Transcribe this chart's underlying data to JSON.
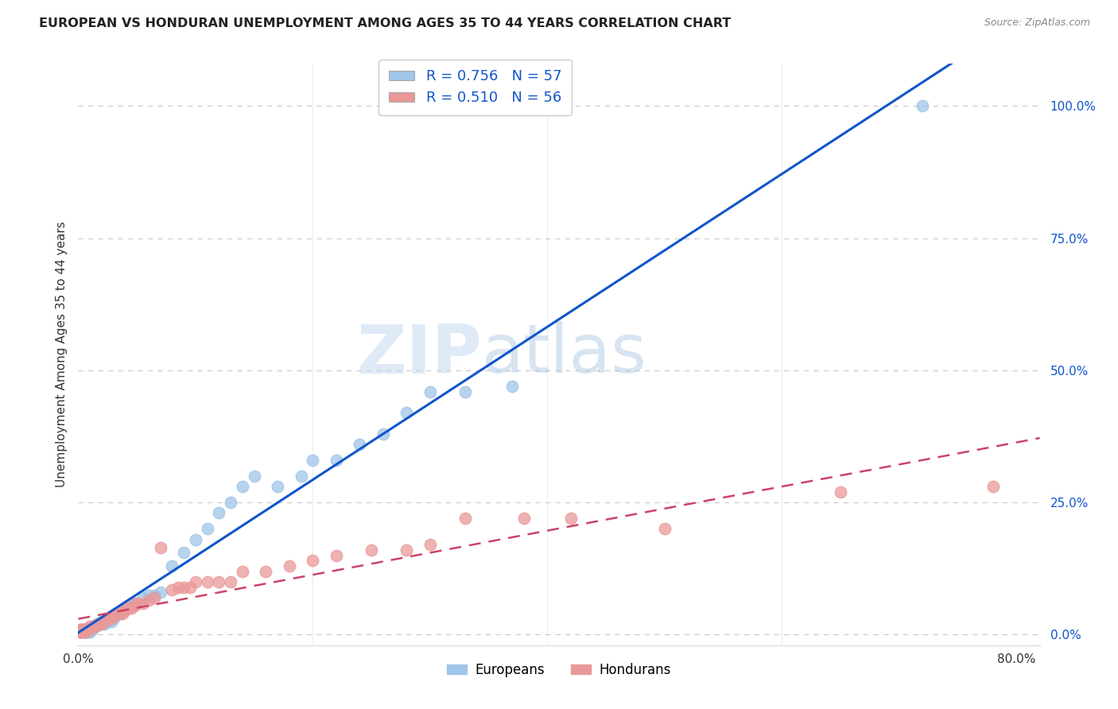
{
  "title": "EUROPEAN VS HONDURAN UNEMPLOYMENT AMONG AGES 35 TO 44 YEARS CORRELATION CHART",
  "source": "Source: ZipAtlas.com",
  "ylabel": "Unemployment Among Ages 35 to 44 years",
  "xlim": [
    0.0,
    0.82
  ],
  "ylim": [
    -0.02,
    1.08
  ],
  "yticks": [
    0.0,
    0.25,
    0.5,
    0.75,
    1.0
  ],
  "ytick_labels": [
    "0.0%",
    "25.0%",
    "50.0%",
    "75.0%",
    "100.0%"
  ],
  "xticks": [
    0.0,
    0.2,
    0.4,
    0.6,
    0.8
  ],
  "xtick_labels": [
    "0.0%",
    "",
    "",
    "",
    "80.0%"
  ],
  "european_color": "#9fc5e8",
  "honduran_color": "#ea9999",
  "european_line_color": "#1155cc",
  "honduran_line_color": "#cc4466",
  "R_european": 0.756,
  "N_european": 57,
  "R_honduran": 0.51,
  "N_honduran": 56,
  "legend_label_european": "Europeans",
  "legend_label_honduran": "Hondurans",
  "watermark_text": "ZIP",
  "watermark_text2": "atlas",
  "background_color": "#ffffff",
  "grid_color": "#cccccc",
  "european_x": [
    0.001,
    0.002,
    0.002,
    0.003,
    0.003,
    0.004,
    0.005,
    0.005,
    0.006,
    0.006,
    0.007,
    0.007,
    0.008,
    0.008,
    0.009,
    0.009,
    0.01,
    0.01,
    0.012,
    0.013,
    0.015,
    0.016,
    0.018,
    0.02,
    0.022,
    0.025,
    0.028,
    0.03,
    0.035,
    0.038,
    0.04,
    0.045,
    0.048,
    0.05,
    0.055,
    0.06,
    0.065,
    0.07,
    0.08,
    0.09,
    0.1,
    0.11,
    0.12,
    0.13,
    0.14,
    0.15,
    0.17,
    0.19,
    0.2,
    0.22,
    0.24,
    0.26,
    0.28,
    0.3,
    0.33,
    0.37,
    0.72
  ],
  "european_y": [
    0.005,
    0.005,
    0.01,
    0.005,
    0.01,
    0.005,
    0.005,
    0.01,
    0.005,
    0.01,
    0.005,
    0.01,
    0.005,
    0.01,
    0.005,
    0.01,
    0.005,
    0.01,
    0.01,
    0.015,
    0.015,
    0.02,
    0.02,
    0.025,
    0.02,
    0.025,
    0.025,
    0.03,
    0.04,
    0.045,
    0.05,
    0.055,
    0.06,
    0.06,
    0.07,
    0.075,
    0.075,
    0.08,
    0.13,
    0.155,
    0.18,
    0.2,
    0.23,
    0.25,
    0.28,
    0.3,
    0.28,
    0.3,
    0.33,
    0.33,
    0.36,
    0.38,
    0.42,
    0.46,
    0.46,
    0.47,
    1.0
  ],
  "honduran_x": [
    0.001,
    0.002,
    0.002,
    0.003,
    0.003,
    0.004,
    0.005,
    0.005,
    0.006,
    0.006,
    0.007,
    0.008,
    0.009,
    0.01,
    0.012,
    0.014,
    0.016,
    0.018,
    0.02,
    0.022,
    0.025,
    0.028,
    0.03,
    0.035,
    0.038,
    0.04,
    0.042,
    0.045,
    0.048,
    0.05,
    0.055,
    0.06,
    0.065,
    0.07,
    0.08,
    0.085,
    0.09,
    0.095,
    0.1,
    0.11,
    0.12,
    0.13,
    0.14,
    0.16,
    0.18,
    0.2,
    0.22,
    0.25,
    0.28,
    0.3,
    0.33,
    0.38,
    0.42,
    0.5,
    0.65,
    0.78
  ],
  "honduran_y": [
    0.005,
    0.005,
    0.01,
    0.005,
    0.01,
    0.005,
    0.005,
    0.01,
    0.005,
    0.01,
    0.01,
    0.01,
    0.01,
    0.015,
    0.015,
    0.015,
    0.02,
    0.02,
    0.02,
    0.025,
    0.03,
    0.03,
    0.035,
    0.04,
    0.04,
    0.045,
    0.05,
    0.05,
    0.055,
    0.06,
    0.06,
    0.065,
    0.07,
    0.165,
    0.085,
    0.09,
    0.09,
    0.09,
    0.1,
    0.1,
    0.1,
    0.1,
    0.12,
    0.12,
    0.13,
    0.14,
    0.15,
    0.16,
    0.16,
    0.17,
    0.22,
    0.22,
    0.22,
    0.2,
    0.27,
    0.28
  ]
}
